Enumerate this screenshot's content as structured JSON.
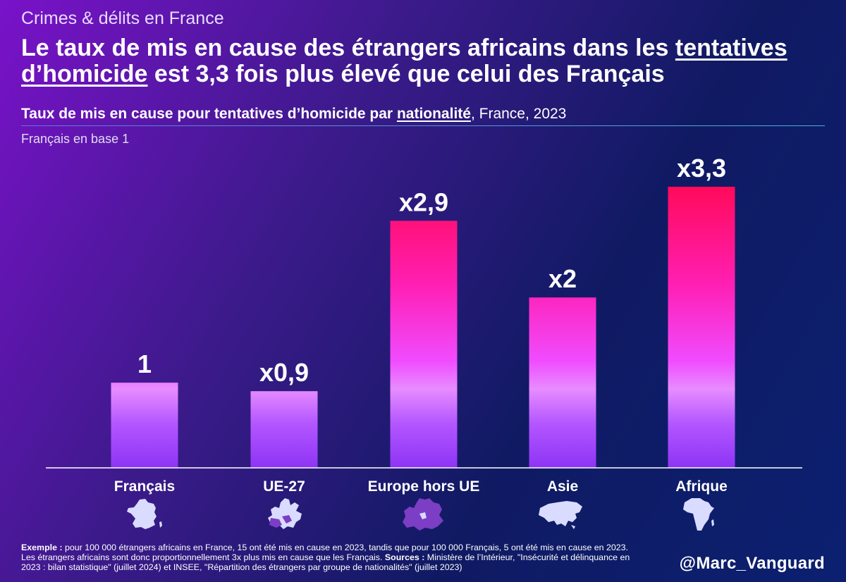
{
  "header": {
    "supertitle": "Crimes & délits en France",
    "title_part1": "Le taux de mis en cause des étrangers africains dans les ",
    "title_underlined1": "tentatives",
    "title_underlined2": "d’homicide",
    "title_part2": " est 3,3 fois plus élevé que celui des Français",
    "subtitle_bold": "Taux de mis en cause pour tentatives d’homicide par ",
    "subtitle_underlined": "nationalité",
    "subtitle_rest": ", France, 2023",
    "base_note": "Français en base 1"
  },
  "chart_data": {
    "type": "bar",
    "title": "Taux de mis en cause pour tentatives d’homicide par nationalité, France, 2023",
    "ylabel": "Français en base 1",
    "categories": [
      "Français",
      "UE-27",
      "Europe hors UE",
      "Asie",
      "Afrique"
    ],
    "values": [
      1,
      0.9,
      2.9,
      2,
      3.3
    ],
    "data_labels": [
      "1",
      "x0,9",
      "x2,9",
      "x2",
      "x3,3"
    ],
    "ylim": [
      0,
      3.3
    ],
    "grid": false,
    "colors": {
      "low": "#9a3cff",
      "mid": "#f04cff",
      "high": "#ff0a5a"
    },
    "category_icons": [
      "france-map-icon",
      "eu27-map-icon",
      "europe-non-eu-map-icon",
      "asia-map-icon",
      "africa-map-icon"
    ]
  },
  "footer": {
    "example_label": "Exemple :",
    "example_text": " pour 100 000 étrangers africains en France, 15 ont été mis en cause en 2023, tandis que pour 100 000 Français, 5 ont été mis en cause en 2023. Les étrangers africains sont donc proportionnellement 3x plus mis en cause que les Français. ",
    "sources_label": "Sources :",
    "sources_text": " Ministère de l’Intérieur, \"Insécurité et délinquance en 2023 : bilan statistique\" (juillet 2024) et INSEE, \"Répartition des étrangers par groupe de nationalités\" (juillet 2023)",
    "handle": "@Marc_Vanguard"
  }
}
